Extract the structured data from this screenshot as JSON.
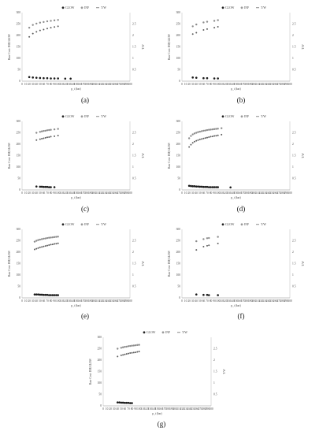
{
  "figure": {
    "labels": [
      "(a)",
      "(b)",
      "(c)",
      "(d)",
      "(e)",
      "(f)",
      "(g)"
    ]
  },
  "chart_data": [
    {
      "type": "scatter",
      "label": "(a)",
      "legend": [
        "GLOW",
        "INF",
        "T/W"
      ],
      "legend_position": "top",
      "xlabel": "p_t (bar)",
      "ylabel": "Raw Cost: INF,GLOW",
      "ylabel_right": "T/W",
      "xlim": [
        0,
        300
      ],
      "ylim": [
        0,
        300
      ],
      "ylim_right": [
        0,
        3
      ],
      "xticks": [
        0,
        10,
        20,
        30,
        40,
        50,
        60,
        70,
        80,
        90,
        100,
        110,
        120,
        130,
        140,
        150,
        160,
        170,
        180,
        190,
        200,
        210,
        220,
        230,
        240,
        250,
        260,
        270,
        280,
        290,
        300
      ],
      "yticks": [
        0,
        50,
        100,
        150,
        200,
        250,
        300
      ],
      "yticks_right": [
        0.5,
        1,
        1.5,
        2,
        2.5
      ],
      "grid": false,
      "series": [
        {
          "name": "GLOW",
          "x": [
            20,
            30,
            40,
            50,
            60,
            70,
            80,
            90,
            100,
            120,
            135
          ],
          "y": [
            18,
            16,
            15,
            14,
            13,
            13,
            12,
            12,
            12,
            11,
            11
          ]
        },
        {
          "name": "INF",
          "x": [
            20,
            30,
            40,
            50,
            60,
            70,
            80,
            90,
            100
          ],
          "y": [
            234,
            246,
            252,
            256,
            259,
            262,
            264,
            266,
            268
          ]
        },
        {
          "name": "T/W",
          "x": [
            20,
            30,
            40,
            50,
            60,
            70,
            80,
            90,
            100
          ],
          "y": [
            1.94,
            2.08,
            2.16,
            2.22,
            2.26,
            2.3,
            2.34,
            2.37,
            2.4
          ]
        }
      ]
    },
    {
      "type": "scatter",
      "label": "(b)",
      "legend": [
        "GLOW",
        "INF",
        "T/W"
      ],
      "legend_position": "top",
      "xlabel": "p_t (bar)",
      "ylabel": "Raw Cost: INF,GLOW",
      "ylabel_right": "T/W",
      "xlim": [
        0,
        300
      ],
      "ylim": [
        0,
        300
      ],
      "ylim_right": [
        0,
        3
      ],
      "xticks": [
        0,
        10,
        20,
        30,
        40,
        50,
        60,
        70,
        80,
        90,
        100,
        110,
        120,
        130,
        140,
        150,
        160,
        170,
        180,
        190,
        200,
        210,
        220,
        230,
        240,
        250,
        260,
        270,
        280,
        290,
        300
      ],
      "yticks": [
        0,
        50,
        100,
        150,
        200,
        250,
        300
      ],
      "yticks_right": [
        0.5,
        1,
        1.5,
        2,
        2.5
      ],
      "grid": false,
      "series": [
        {
          "name": "GLOW",
          "x": [
            30,
            40,
            60,
            70,
            90,
            100
          ],
          "y": [
            16,
            15,
            13,
            13,
            12,
            12
          ]
        },
        {
          "name": "INF",
          "x": [
            30,
            40,
            60,
            70,
            90,
            100
          ],
          "y": [
            240,
            248,
            257,
            260,
            264,
            267
          ]
        },
        {
          "name": "T/W",
          "x": [
            30,
            40,
            60,
            70,
            90,
            100
          ],
          "y": [
            2.06,
            2.12,
            2.24,
            2.28,
            2.34,
            2.38
          ]
        }
      ]
    },
    {
      "type": "scatter",
      "label": "(c)",
      "legend": [
        "GLOW",
        "INF",
        "T/W"
      ],
      "legend_position": "top",
      "xlabel": "p_t (bar)",
      "ylabel": "Raw Cost: INF,GLOW",
      "ylabel_right": "T/W",
      "xlim": [
        0,
        300
      ],
      "ylim": [
        0,
        300
      ],
      "ylim_right": [
        0,
        3
      ],
      "xticks": [
        0,
        10,
        20,
        30,
        40,
        50,
        60,
        70,
        80,
        90,
        100,
        110,
        120,
        130,
        140,
        150,
        160,
        170,
        180,
        190,
        200,
        210,
        220,
        230,
        240,
        250,
        260,
        270,
        280,
        290,
        300
      ],
      "yticks": [
        0,
        50,
        100,
        150,
        200,
        250,
        300
      ],
      "yticks_right": [
        0.5,
        1,
        1.5,
        2,
        2.5
      ],
      "grid": false,
      "series": [
        {
          "name": "GLOW",
          "x": [
            40,
            50,
            55,
            60,
            65,
            70,
            75,
            80,
            90
          ],
          "y": [
            15,
            14,
            14,
            13,
            13,
            13,
            12,
            12,
            12
          ]
        },
        {
          "name": "INF",
          "x": [
            40,
            50,
            55,
            60,
            65,
            70,
            75,
            80,
            90,
            100
          ],
          "y": [
            250,
            254,
            256,
            258,
            259,
            261,
            262,
            263,
            265,
            267
          ]
        },
        {
          "name": "T/W",
          "x": [
            40,
            50,
            55,
            60,
            65,
            70,
            75,
            80,
            90,
            100
          ],
          "y": [
            2.18,
            2.22,
            2.24,
            2.26,
            2.28,
            2.3,
            2.31,
            2.33,
            2.35,
            2.38
          ]
        }
      ]
    },
    {
      "type": "scatter",
      "label": "(d)",
      "legend": [
        "GLOW",
        "INF",
        "T/W"
      ],
      "legend_position": "top",
      "xlabel": "p_t (bar)",
      "ylabel": "Raw Cost: INF,GLOW",
      "ylabel_right": "T/W",
      "xlim": [
        0,
        300
      ],
      "ylim": [
        0,
        300
      ],
      "ylim_right": [
        0,
        3
      ],
      "xticks": [
        0,
        10,
        20,
        30,
        40,
        50,
        60,
        70,
        80,
        90,
        100,
        110,
        120,
        130,
        140,
        150,
        160,
        170,
        180,
        190,
        200,
        210,
        220,
        230,
        240,
        250,
        260,
        270,
        280,
        290,
        300
      ],
      "yticks": [
        0,
        50,
        100,
        150,
        200,
        250,
        300
      ],
      "yticks_right": [
        0.5,
        1,
        1.5,
        2,
        2.5
      ],
      "grid": false,
      "series": [
        {
          "name": "GLOW",
          "x": [
            20,
            25,
            30,
            35,
            40,
            45,
            50,
            55,
            60,
            65,
            70,
            75,
            80,
            85,
            90,
            95,
            100,
            135
          ],
          "y": [
            18,
            17,
            16,
            16,
            15,
            15,
            14,
            14,
            13,
            13,
            13,
            12,
            12,
            12,
            12,
            12,
            12,
            11
          ]
        },
        {
          "name": "INF",
          "x": [
            20,
            25,
            30,
            35,
            40,
            45,
            50,
            55,
            60,
            65,
            70,
            75,
            80,
            85,
            90,
            95,
            100,
            110
          ],
          "y": [
            226,
            236,
            243,
            247,
            250,
            253,
            255,
            257,
            259,
            260,
            262,
            263,
            264,
            265,
            266,
            267,
            268,
            270
          ]
        },
        {
          "name": "T/W",
          "x": [
            20,
            25,
            30,
            35,
            40,
            45,
            50,
            55,
            60,
            65,
            70,
            75,
            80,
            85,
            90,
            95,
            100,
            110
          ],
          "y": [
            1.88,
            1.98,
            2.06,
            2.11,
            2.15,
            2.18,
            2.21,
            2.23,
            2.25,
            2.27,
            2.29,
            2.31,
            2.33,
            2.34,
            2.36,
            2.37,
            2.39,
            2.42
          ]
        }
      ]
    },
    {
      "type": "scatter",
      "label": "(e)",
      "legend": [
        "GLOW",
        "INF",
        "T/W"
      ],
      "legend_position": "top",
      "xlabel": "p_t (bar)",
      "ylabel": "Raw Cost: INF,GLOW",
      "ylabel_right": "T/W",
      "xlim": [
        0,
        300
      ],
      "ylim": [
        0,
        300
      ],
      "ylim_right": [
        0,
        3
      ],
      "xticks": [
        0,
        10,
        20,
        30,
        40,
        50,
        60,
        70,
        80,
        90,
        100,
        110,
        120,
        130,
        140,
        150,
        160,
        170,
        180,
        190,
        200,
        210,
        220,
        230,
        240,
        250,
        260,
        270,
        280,
        290,
        300
      ],
      "yticks": [
        0,
        50,
        100,
        150,
        200,
        250,
        300
      ],
      "yticks_right": [
        0.5,
        1,
        1.5,
        2,
        2.5
      ],
      "grid": false,
      "series": [
        {
          "name": "GLOW",
          "x": [
            35,
            40,
            45,
            50,
            55,
            60,
            65,
            70,
            75,
            80,
            85,
            90,
            95,
            100
          ],
          "y": [
            15,
            15,
            15,
            14,
            14,
            13,
            13,
            13,
            12,
            12,
            12,
            12,
            12,
            12
          ]
        },
        {
          "name": "INF",
          "x": [
            35,
            40,
            45,
            50,
            55,
            60,
            65,
            70,
            75,
            80,
            85,
            90,
            95,
            100
          ],
          "y": [
            246,
            250,
            253,
            255,
            257,
            259,
            260,
            262,
            263,
            264,
            265,
            266,
            267,
            268
          ]
        },
        {
          "name": "T/W",
          "x": [
            35,
            40,
            45,
            50,
            55,
            60,
            65,
            70,
            75,
            80,
            85,
            90,
            95,
            100
          ],
          "y": [
            2.12,
            2.15,
            2.18,
            2.21,
            2.23,
            2.25,
            2.27,
            2.29,
            2.31,
            2.33,
            2.34,
            2.36,
            2.37,
            2.39
          ]
        }
      ]
    },
    {
      "type": "scatter",
      "label": "(f)",
      "legend": [
        "GLOW",
        "INF",
        "T/W"
      ],
      "legend_position": "top",
      "xlabel": "p_t (bar)",
      "ylabel": "Raw Cost: INF,GLOW",
      "ylabel_right": "T/W",
      "xlim": [
        0,
        300
      ],
      "ylim": [
        0,
        300
      ],
      "ylim_right": [
        0,
        3
      ],
      "xticks": [
        0,
        10,
        20,
        30,
        40,
        50,
        60,
        70,
        80,
        90,
        100,
        110,
        120,
        130,
        140,
        150,
        160,
        170,
        180,
        190,
        200,
        210,
        220,
        230,
        240,
        250,
        260,
        270,
        280,
        290,
        300
      ],
      "yticks": [
        0,
        50,
        100,
        150,
        200,
        250,
        300
      ],
      "yticks_right": [
        0.5,
        1,
        1.5,
        2,
        2.5
      ],
      "grid": false,
      "series": [
        {
          "name": "GLOW",
          "x": [
            40,
            60,
            70,
            75,
            100
          ],
          "y": [
            15,
            13,
            13,
            12,
            12
          ]
        },
        {
          "name": "INF",
          "x": [
            40,
            60,
            70,
            75,
            100
          ],
          "y": [
            248,
            257,
            261,
            262,
            267
          ]
        },
        {
          "name": "T/W",
          "x": [
            40,
            60,
            70,
            75,
            100
          ],
          "y": [
            2.1,
            2.24,
            2.28,
            2.3,
            2.38
          ]
        }
      ]
    },
    {
      "type": "scatter",
      "label": "(g)",
      "legend": [
        "GLOW",
        "INF",
        "T/W"
      ],
      "legend_position": "top",
      "xlabel": "p_t (bar)",
      "ylabel": "Raw Cost: INF,GLOW",
      "ylabel_right": "T/W",
      "xlim": [
        0,
        300
      ],
      "ylim": [
        0,
        300
      ],
      "ylim_right": [
        0,
        3
      ],
      "xticks": [
        0,
        10,
        20,
        30,
        40,
        50,
        60,
        70,
        80,
        90,
        100,
        110,
        120,
        130,
        140,
        150,
        160,
        170,
        180,
        190,
        200,
        210,
        220,
        230,
        240,
        250,
        260,
        270,
        280,
        290,
        300
      ],
      "yticks": [
        0,
        50,
        100,
        150,
        200,
        250,
        300
      ],
      "yticks_right": [
        0.5,
        1,
        1.5,
        2,
        2.5
      ],
      "grid": false,
      "series": [
        {
          "name": "GLOW",
          "x": [
            40,
            45,
            50,
            55,
            60,
            65,
            70,
            75,
            80
          ],
          "y": [
            15,
            15,
            14,
            14,
            13,
            13,
            13,
            12,
            12
          ]
        },
        {
          "name": "INF",
          "x": [
            40,
            50,
            55,
            60,
            65,
            70,
            75,
            80,
            85,
            90,
            95,
            100
          ],
          "y": [
            250,
            254,
            256,
            258,
            259,
            261,
            262,
            263,
            264,
            265,
            266,
            267
          ]
        },
        {
          "name": "T/W",
          "x": [
            40,
            50,
            55,
            60,
            65,
            70,
            75,
            80,
            85,
            90,
            95,
            100
          ],
          "y": [
            2.16,
            2.21,
            2.23,
            2.25,
            2.27,
            2.29,
            2.31,
            2.32,
            2.33,
            2.34,
            2.36,
            2.38
          ]
        }
      ]
    }
  ]
}
